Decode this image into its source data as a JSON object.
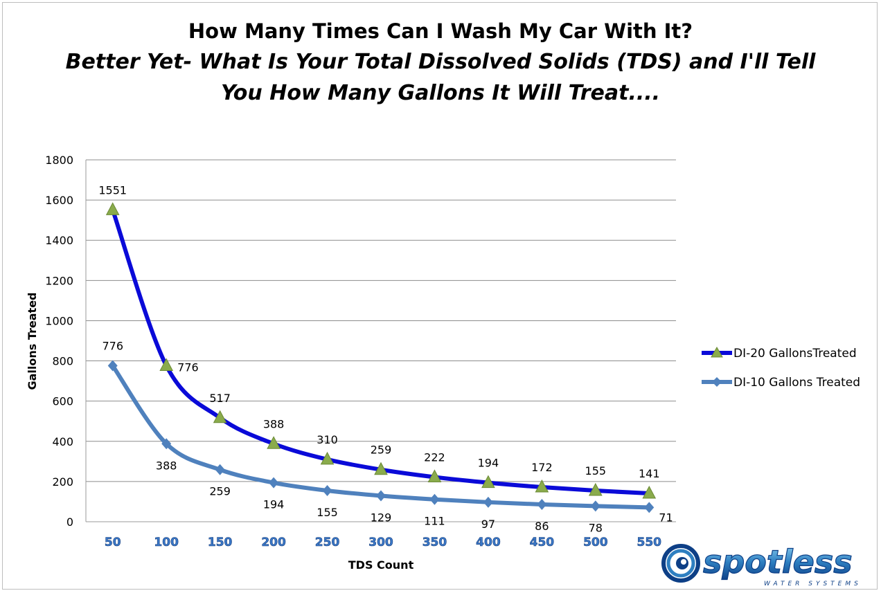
{
  "header": {
    "title": "How Many Times Can I Wash My Car  With It?",
    "subtitle_line1": "Better Yet- What Is Your Total Dissolved Solids (TDS) and I'll Tell",
    "subtitle_line2": "You How Many Gallons It Will Treat...."
  },
  "logo": {
    "brand": "spotless",
    "tagline": "WATER SYSTEMS"
  },
  "chart_data": {
    "type": "line",
    "xlabel": "TDS Count",
    "ylabel": "Gallons Treated",
    "categories": [
      "50",
      "100",
      "150",
      "200",
      "250",
      "300",
      "350",
      "400",
      "450",
      "500",
      "550"
    ],
    "ylim": [
      0,
      1800
    ],
    "yticks": [
      0,
      200,
      400,
      600,
      800,
      1000,
      1200,
      1400,
      1600,
      1800
    ],
    "grid": true,
    "legend_position": "right",
    "series": [
      {
        "name": "DI-20 GallonsTreated",
        "values": [
          1551,
          776,
          517,
          388,
          310,
          259,
          222,
          194,
          172,
          155,
          141
        ],
        "line_color": "#0a0ad8",
        "marker": "triangle",
        "marker_color": "#8aab4c"
      },
      {
        "name": "DI-10 Gallons Treated",
        "values": [
          776,
          388,
          259,
          194,
          155,
          129,
          111,
          97,
          86,
          78,
          71
        ],
        "line_color": "#4f81bd",
        "marker": "diamond",
        "marker_color": "#4f81bd"
      }
    ]
  }
}
